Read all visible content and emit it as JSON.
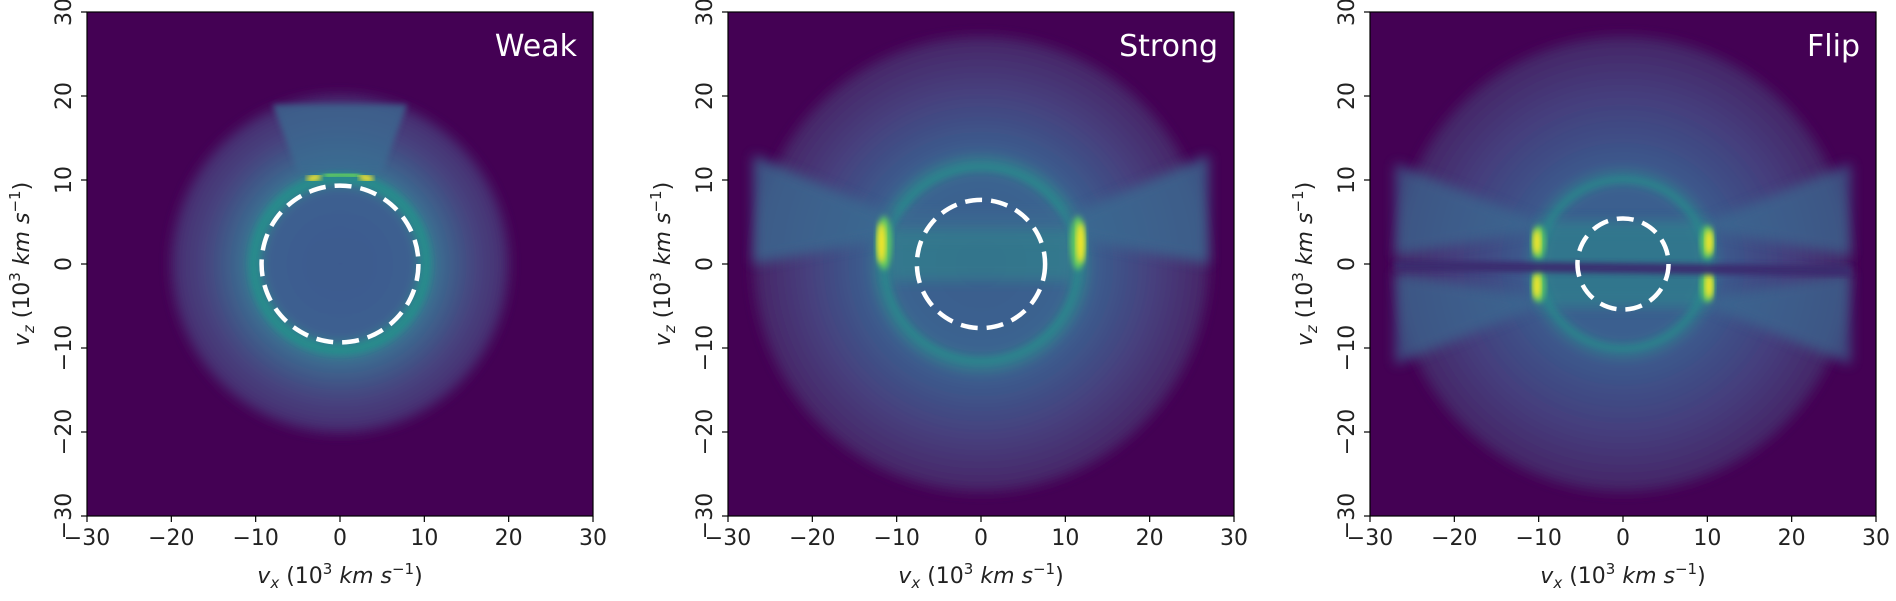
{
  "colors": {
    "background": "#440154",
    "low": "#3b528b",
    "mid": "#21918c",
    "high": "#5ec962",
    "peak": "#fde725",
    "dashed_circle": "#ffffff"
  },
  "chart_data": [
    {
      "type": "heatmap",
      "panel_label": "Weak",
      "xlabel": "v_x (10^3 km s^-1)",
      "ylabel": "v_z (10^3 km s^-1)",
      "xlim": [
        -30,
        30
      ],
      "ylim": [
        -30,
        30
      ],
      "xticks": [
        -30,
        -20,
        -10,
        0,
        10,
        20,
        30
      ],
      "yticks": [
        -30,
        -20,
        -10,
        0,
        10,
        20,
        30
      ],
      "colormap": "viridis",
      "dashed_circle_radius": 9.3,
      "inner_ring_radius": 10.2,
      "outer_radius": 20,
      "features": "bright arc at top near vz≈11 between vx≈-4 and 4; fan extends up to vz≈19"
    },
    {
      "type": "heatmap",
      "panel_label": "Strong",
      "xlabel": "v_x (10^3 km s^-1)",
      "ylabel": "v_z (10^3 km s^-1)",
      "xlim": [
        -30,
        30
      ],
      "ylim": [
        -30,
        30
      ],
      "xticks": [
        -30,
        -20,
        -10,
        0,
        10,
        20,
        30
      ],
      "yticks": [
        -30,
        -20,
        -10,
        0,
        10,
        20,
        30
      ],
      "colormap": "viridis",
      "dashed_circle_radius": 7.6,
      "inner_ring_radius": 11.5,
      "outer_radius": 27,
      "features": "bright arcs at vx≈±11.5 near vz≈2; equatorial band between vz≈-2 and 10"
    },
    {
      "type": "heatmap",
      "panel_label": "Flip",
      "xlabel": "v_x (10^3 km s^-1)",
      "ylabel": "v_z (10^3 km s^-1)",
      "xlim": [
        -30,
        30
      ],
      "ylim": [
        -30,
        30
      ],
      "xticks": [
        -30,
        -20,
        -10,
        0,
        10,
        20,
        30
      ],
      "yticks": [
        -30,
        -20,
        -10,
        0,
        10,
        20,
        30
      ],
      "colormap": "viridis",
      "dashed_circle_radius": 5.4,
      "inner_ring_radius": 10,
      "outer_radius": 27,
      "features": "bright arcs at vx≈±10 above and below a dark equatorial line at vz≈0"
    }
  ]
}
